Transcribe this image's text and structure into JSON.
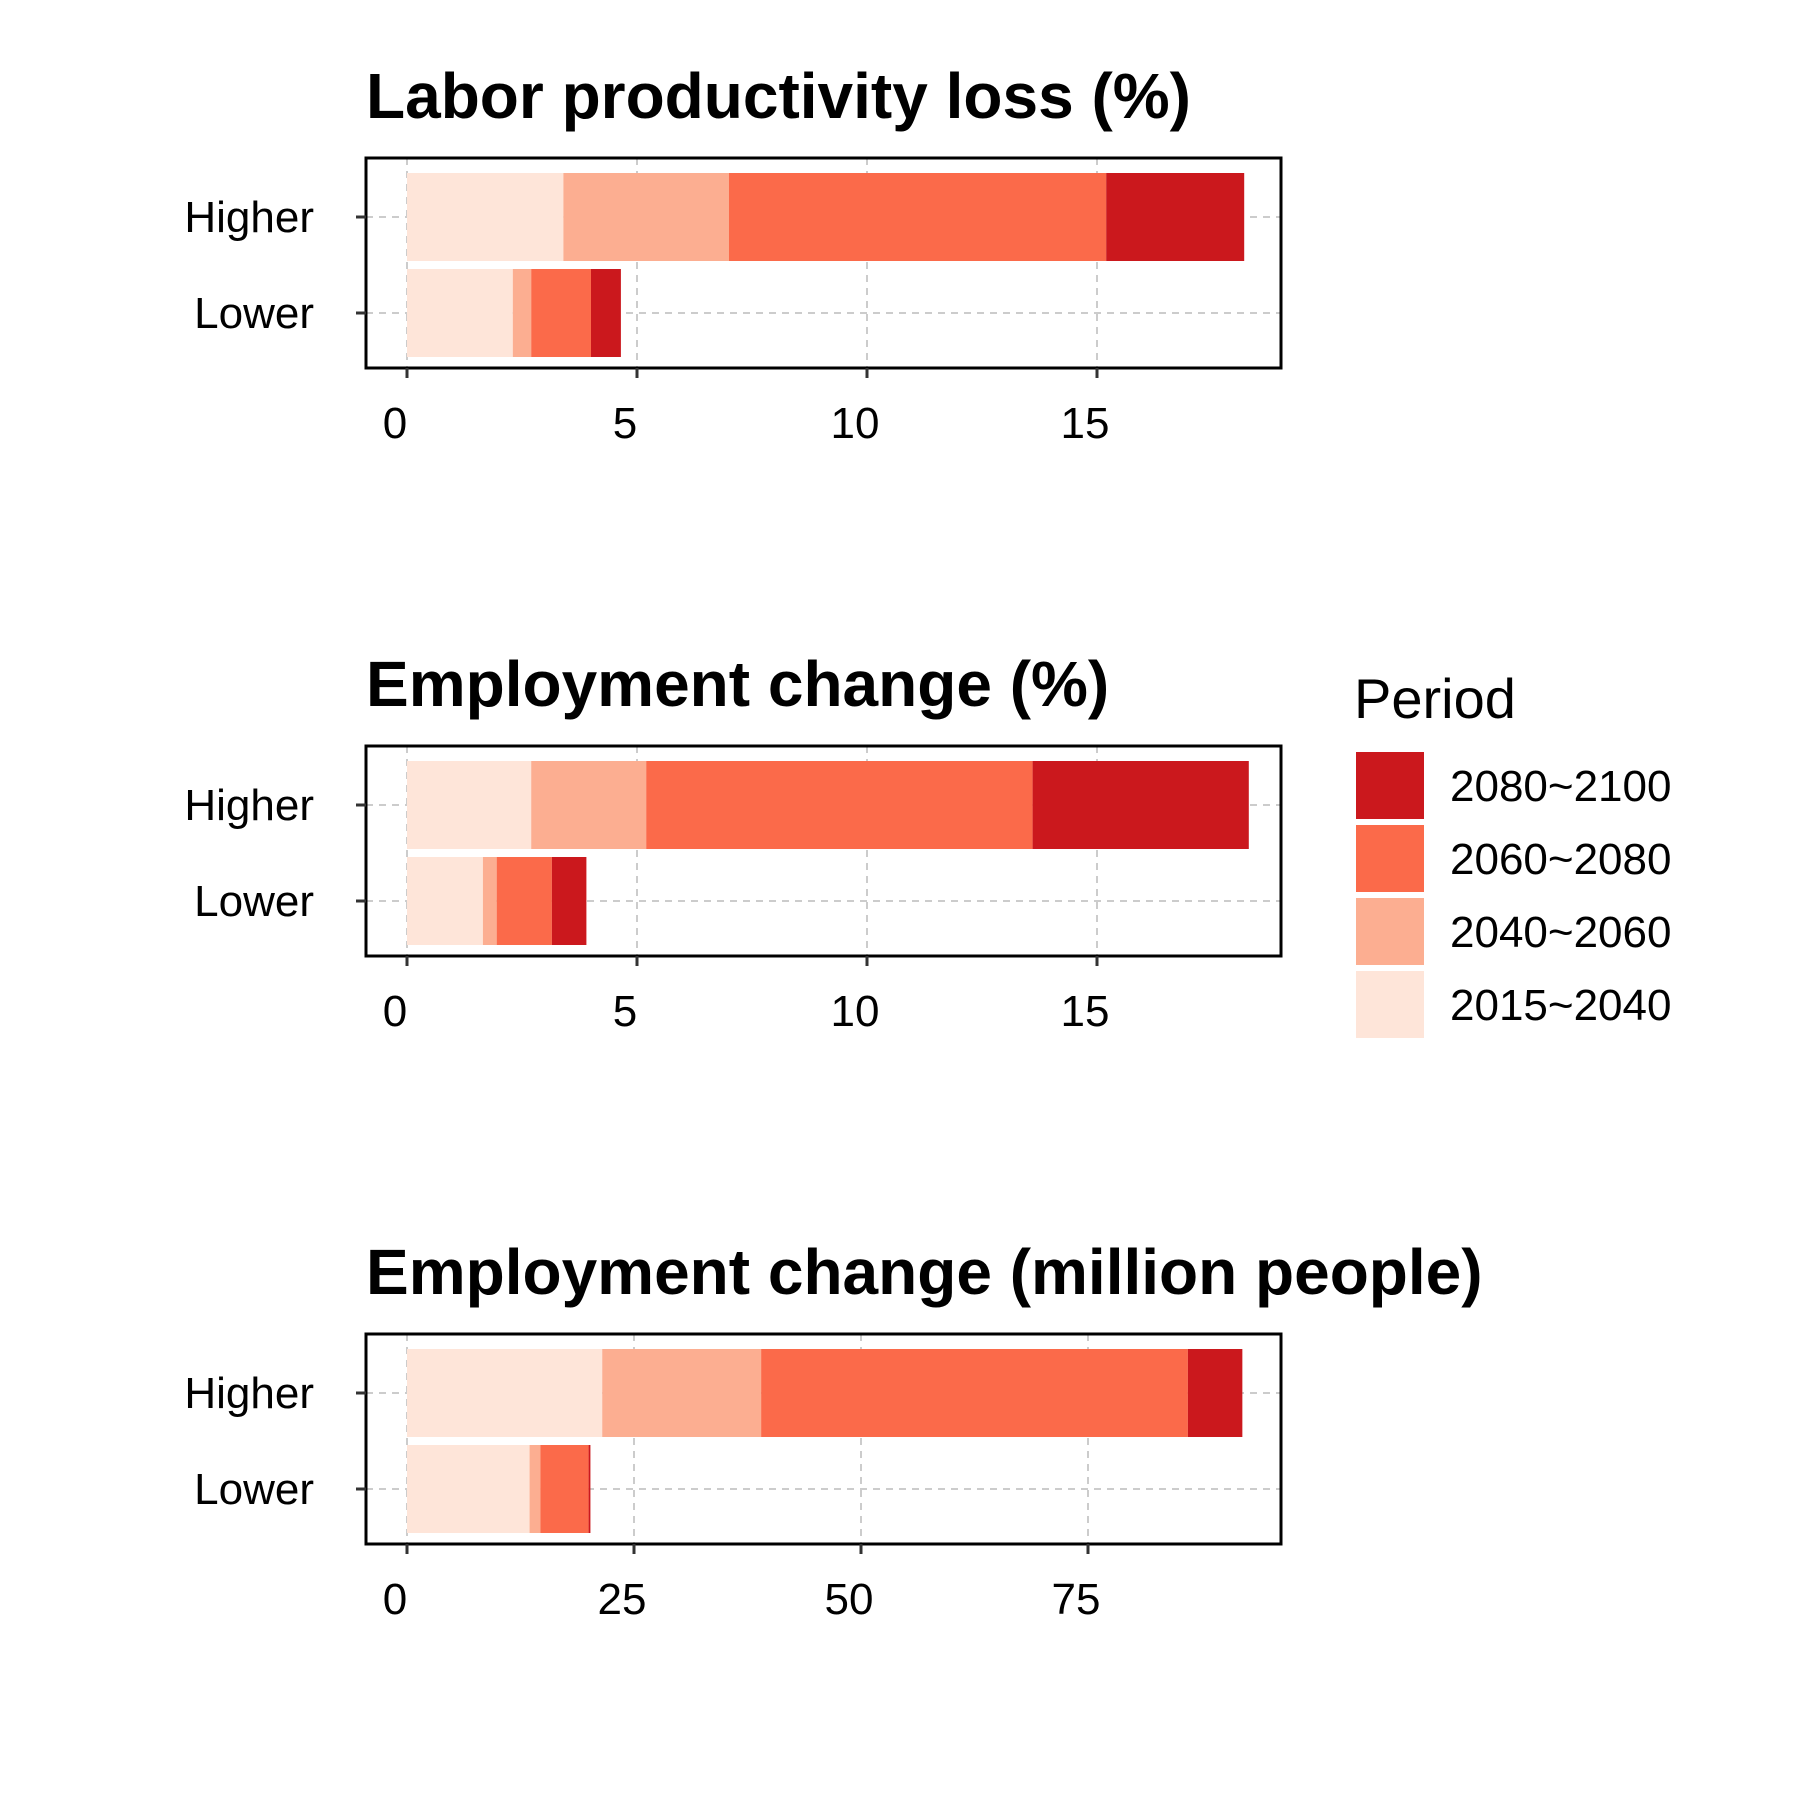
{
  "colors": {
    "2080~2100": "#cb181d",
    "2060~2080": "#fb6a4a",
    "2040~2060": "#fcae91",
    "2015~2040": "#fee5d9",
    "grid": "#cccccc",
    "frame": "#000000"
  },
  "legend": {
    "title": "Period",
    "items": [
      {
        "label": "2080~2100",
        "color": "#cb181d"
      },
      {
        "label": "2060~2080",
        "color": "#fb6a4a"
      },
      {
        "label": "2040~2060",
        "color": "#fcae91"
      },
      {
        "label": "2015~2040",
        "color": "#fee5d9"
      }
    ]
  },
  "chart_data": [
    {
      "type": "bar",
      "orientation": "horizontal",
      "stacked": true,
      "title": "Labor productivity loss (%)",
      "categories": [
        "Higher",
        "Lower"
      ],
      "xlim": [
        0,
        19
      ],
      "xticks": [
        0,
        5,
        10,
        15
      ],
      "series": [
        {
          "name": "2015~2040",
          "values": [
            3.4,
            2.3
          ]
        },
        {
          "name": "2040~2060",
          "values": [
            3.6,
            0.4
          ]
        },
        {
          "name": "2060~2080",
          "values": [
            8.2,
            1.3
          ]
        },
        {
          "name": "2080~2100",
          "values": [
            3.0,
            0.65
          ]
        }
      ]
    },
    {
      "type": "bar",
      "orientation": "horizontal",
      "stacked": true,
      "title": "Employment change (%)",
      "categories": [
        "Higher",
        "Lower"
      ],
      "xlim": [
        0,
        19
      ],
      "xticks": [
        0,
        5,
        10,
        15
      ],
      "series": [
        {
          "name": "2015~2040",
          "values": [
            2.7,
            1.65
          ]
        },
        {
          "name": "2040~2060",
          "values": [
            2.5,
            0.3
          ]
        },
        {
          "name": "2060~2080",
          "values": [
            8.4,
            1.2
          ]
        },
        {
          "name": "2080~2100",
          "values": [
            4.7,
            0.75
          ]
        }
      ]
    },
    {
      "type": "bar",
      "orientation": "horizontal",
      "stacked": true,
      "title": "Employment change (million people)",
      "categories": [
        "Higher",
        "Lower"
      ],
      "xlim": [
        0,
        96
      ],
      "xticks": [
        0,
        25,
        50,
        75
      ],
      "series": [
        {
          "name": "2015~2040",
          "values": [
            21.5,
            13.5
          ]
        },
        {
          "name": "2040~2060",
          "values": [
            17.5,
            1.2
          ]
        },
        {
          "name": "2060~2080",
          "values": [
            47.0,
            5.3
          ]
        },
        {
          "name": "2080~2100",
          "values": [
            6.0,
            0.2
          ]
        }
      ]
    }
  ]
}
